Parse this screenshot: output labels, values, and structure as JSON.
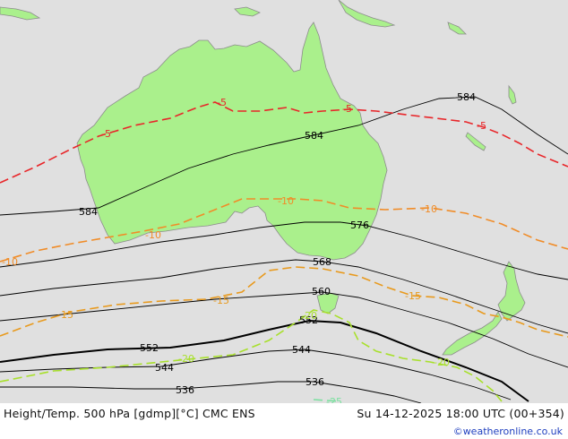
{
  "map": {
    "colors": {
      "sea": "#e0e0e0",
      "land": "#aaf08c",
      "coast": "#8c8c8c",
      "height_contour": "#000000",
      "temp_minus5": "#e8262a",
      "temp_minus10": "#f08c28",
      "temp_minus15": "#e89a1e",
      "temp_minus20": "#a8e02c",
      "temp_minus25": "#7ce0a0"
    },
    "height_labels": [
      "584",
      "584",
      "584",
      "576",
      "568",
      "560",
      "552",
      "552",
      "544",
      "544",
      "536",
      "536"
    ],
    "temp_labels": [
      "-5",
      "-5",
      "-5",
      "-5",
      "-10",
      "-10",
      "-10",
      "-10",
      "-15",
      "-15",
      "-15",
      "-20",
      "-20",
      "-20",
      "-25"
    ]
  },
  "footer": {
    "title": "Height/Temp. 500 hPa [gdmp][°C] CMC ENS",
    "datetime": "Su 14-12-2025 18:00 UTC (00+354)",
    "credit": "©weatheronline.co.uk"
  }
}
